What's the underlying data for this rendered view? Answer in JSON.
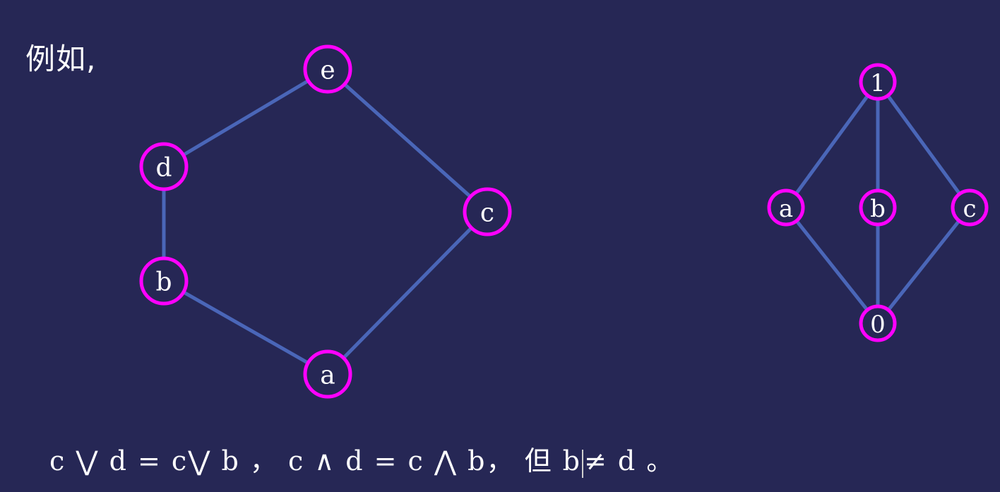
{
  "intro_text": "例如,",
  "diagrams": [
    {
      "id": "pentagon",
      "nodes": [
        {
          "id": "e",
          "label": "e"
        },
        {
          "id": "d",
          "label": "d"
        },
        {
          "id": "c",
          "label": "c"
        },
        {
          "id": "b",
          "label": "b"
        },
        {
          "id": "a",
          "label": "a"
        }
      ],
      "edges": [
        [
          "e",
          "d"
        ],
        [
          "e",
          "c"
        ],
        [
          "d",
          "b"
        ],
        [
          "b",
          "a"
        ],
        [
          "a",
          "c"
        ]
      ]
    },
    {
      "id": "diamond",
      "nodes": [
        {
          "id": "1",
          "label": "1"
        },
        {
          "id": "a",
          "label": "a"
        },
        {
          "id": "b",
          "label": "b"
        },
        {
          "id": "c",
          "label": "c"
        },
        {
          "id": "0",
          "label": "0"
        }
      ],
      "edges": [
        [
          "1",
          "a"
        ],
        [
          "1",
          "b"
        ],
        [
          "1",
          "c"
        ],
        [
          "a",
          "0"
        ],
        [
          "b",
          "0"
        ],
        [
          "c",
          "0"
        ]
      ]
    }
  ],
  "colors": {
    "background": "#262755",
    "edge": "#4a66b8",
    "node_ring": "#ff00ff",
    "text": "#ffffff"
  },
  "formula": {
    "part1": "c ⋁  d = c⋁  b ，",
    "part2": "c  ∧  d = c  ⋀  b，",
    "part3": "但 b",
    "part4": "≠ d 。"
  }
}
